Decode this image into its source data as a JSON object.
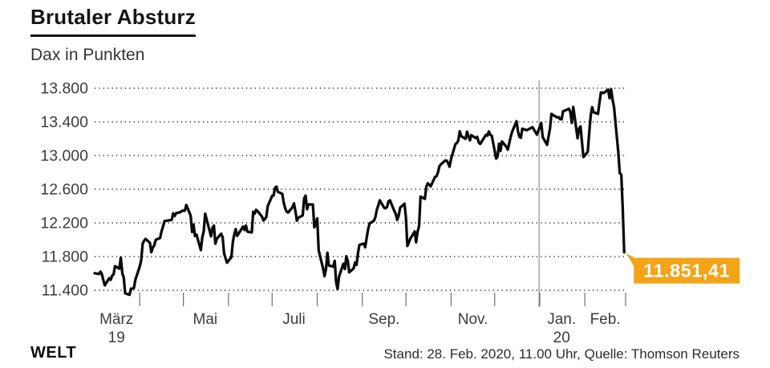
{
  "header": {
    "title": "Brutaler Absturz",
    "subtitle": "Dax in Punkten"
  },
  "footer": {
    "brand": "WELT",
    "source": "Stand: 28. Feb. 2020, 11.00 Uhr, Quelle: Thomson Reuters"
  },
  "colors": {
    "line": "#0b0b0b",
    "grid": "#222222",
    "tick": "#6e6e6e",
    "separator": "#7a7a7a",
    "axis_text": "#3c3c3c",
    "badge": "#F4A418",
    "badge_text": "#ffffff"
  },
  "chart_data": {
    "type": "line",
    "title": "Brutaler Absturz",
    "subtitle": "Dax in Punkten",
    "ylabel": "Dax in Punkten",
    "grid": "dotted-horizontal",
    "ylim": [
      11400,
      13800
    ],
    "yticks": [
      {
        "value": 13800,
        "label": "13.800"
      },
      {
        "value": 13400,
        "label": "13.400"
      },
      {
        "value": 13000,
        "label": "13.000"
      },
      {
        "value": 12600,
        "label": "12.600"
      },
      {
        "value": 12200,
        "label": "12.200"
      },
      {
        "value": 11800,
        "label": "11.800"
      },
      {
        "value": 11400,
        "label": "11.400"
      }
    ],
    "x_domain_days": [
      0,
      365
    ],
    "x_domain_note": "days since 1. März 2019",
    "xticks_days": [
      31,
      61,
      92,
      122,
      153,
      184,
      214,
      245,
      275,
      306,
      337,
      365
    ],
    "xlabels": [
      {
        "day": 15,
        "label": "März",
        "year": "19"
      },
      {
        "day": 76,
        "label": "Mai"
      },
      {
        "day": 137,
        "label": "Juli"
      },
      {
        "day": 199,
        "label": "Sep."
      },
      {
        "day": 260,
        "label": "Nov."
      },
      {
        "day": 321,
        "label": "Jan.",
        "year": "20"
      },
      {
        "day": 351,
        "label": "Feb."
      }
    ],
    "separator_day": 305.5,
    "last_point": {
      "day": 364,
      "value": 11851.41,
      "label": "11.851,41"
    },
    "series": [
      {
        "name": "Dax",
        "points": [
          [
            0,
            11602
          ],
          [
            3,
            11592
          ],
          [
            4,
            11621
          ],
          [
            5,
            11588
          ],
          [
            6,
            11518
          ],
          [
            7,
            11458
          ],
          [
            10,
            11543
          ],
          [
            11,
            11524
          ],
          [
            12,
            11572
          ],
          [
            13,
            11587
          ],
          [
            14,
            11686
          ],
          [
            17,
            11657
          ],
          [
            18,
            11788
          ],
          [
            19,
            11603
          ],
          [
            20,
            11549
          ],
          [
            21,
            11364
          ],
          [
            24,
            11346
          ],
          [
            25,
            11419
          ],
          [
            26,
            11419
          ],
          [
            27,
            11428
          ],
          [
            28,
            11526
          ],
          [
            31,
            11681
          ],
          [
            32,
            11754
          ],
          [
            33,
            11954
          ],
          [
            34,
            11988
          ],
          [
            35,
            12010
          ],
          [
            38,
            11963
          ],
          [
            39,
            11851
          ],
          [
            40,
            11906
          ],
          [
            41,
            11935
          ],
          [
            42,
            11999
          ],
          [
            45,
            12020
          ],
          [
            46,
            12101
          ],
          [
            47,
            12153
          ],
          [
            48,
            12222
          ],
          [
            53,
            12235
          ],
          [
            54,
            12313
          ],
          [
            55,
            12282
          ],
          [
            56,
            12315
          ],
          [
            59,
            12328
          ],
          [
            60,
            12344
          ],
          [
            62,
            12345
          ],
          [
            63,
            12413
          ],
          [
            66,
            12286
          ],
          [
            67,
            12092
          ],
          [
            68,
            12180
          ],
          [
            69,
            12045
          ],
          [
            70,
            12060
          ],
          [
            73,
            11877
          ],
          [
            74,
            12027
          ],
          [
            75,
            12100
          ],
          [
            76,
            12310
          ],
          [
            77,
            12239
          ],
          [
            80,
            12041
          ],
          [
            81,
            12143
          ],
          [
            82,
            12168
          ],
          [
            83,
            11952
          ],
          [
            84,
            12011
          ],
          [
            87,
            12071
          ],
          [
            88,
            12028
          ],
          [
            89,
            11837
          ],
          [
            91,
            11727
          ],
          [
            94,
            11793
          ],
          [
            95,
            11972
          ],
          [
            96,
            12064
          ],
          [
            97,
            12127
          ],
          [
            98,
            12045
          ],
          [
            102,
            12156
          ],
          [
            103,
            12116
          ],
          [
            104,
            12169
          ],
          [
            105,
            12096
          ],
          [
            108,
            12086
          ],
          [
            109,
            12332
          ],
          [
            110,
            12309
          ],
          [
            111,
            12355
          ],
          [
            112,
            12340
          ],
          [
            115,
            12275
          ],
          [
            116,
            12229
          ],
          [
            117,
            12245
          ],
          [
            118,
            12271
          ],
          [
            119,
            12399
          ],
          [
            122,
            12521
          ],
          [
            123,
            12526
          ],
          [
            124,
            12616
          ],
          [
            125,
            12630
          ],
          [
            126,
            12569
          ],
          [
            129,
            12544
          ],
          [
            130,
            12437
          ],
          [
            131,
            12373
          ],
          [
            132,
            12332
          ],
          [
            133,
            12323
          ],
          [
            136,
            12387
          ],
          [
            137,
            12431
          ],
          [
            138,
            12341
          ],
          [
            139,
            12227
          ],
          [
            140,
            12260
          ],
          [
            143,
            12289
          ],
          [
            144,
            12491
          ],
          [
            145,
            12523
          ],
          [
            146,
            12362
          ],
          [
            147,
            12420
          ],
          [
            150,
            12417
          ],
          [
            151,
            12148
          ],
          [
            152,
            12189
          ],
          [
            153,
            12253
          ],
          [
            154,
            11873
          ],
          [
            157,
            11659
          ],
          [
            158,
            11568
          ],
          [
            159,
            11650
          ],
          [
            160,
            11845
          ],
          [
            161,
            11694
          ],
          [
            164,
            11680
          ],
          [
            165,
            11750
          ],
          [
            166,
            11493
          ],
          [
            167,
            11413
          ],
          [
            168,
            11563
          ],
          [
            171,
            11715
          ],
          [
            172,
            11651
          ],
          [
            173,
            11803
          ],
          [
            174,
            11747
          ],
          [
            175,
            11612
          ],
          [
            178,
            11658
          ],
          [
            179,
            11730
          ],
          [
            180,
            11701
          ],
          [
            181,
            11839
          ],
          [
            182,
            11939
          ],
          [
            185,
            11954
          ],
          [
            186,
            11910
          ],
          [
            187,
            12025
          ],
          [
            188,
            12127
          ],
          [
            189,
            12192
          ],
          [
            192,
            12226
          ],
          [
            193,
            12268
          ],
          [
            194,
            12359
          ],
          [
            195,
            12410
          ],
          [
            196,
            12469
          ],
          [
            199,
            12380
          ],
          [
            200,
            12373
          ],
          [
            201,
            12390
          ],
          [
            202,
            12457
          ],
          [
            203,
            12468
          ],
          [
            206,
            12342
          ],
          [
            207,
            12308
          ],
          [
            208,
            12235
          ],
          [
            209,
            12289
          ],
          [
            210,
            12381
          ],
          [
            213,
            12428
          ],
          [
            214,
            12263
          ],
          [
            215,
            11926
          ],
          [
            217,
            12013
          ],
          [
            220,
            12098
          ],
          [
            221,
            11970
          ],
          [
            222,
            12094
          ],
          [
            223,
            12164
          ],
          [
            224,
            12512
          ],
          [
            227,
            12486
          ],
          [
            228,
            12629
          ],
          [
            229,
            12670
          ],
          [
            230,
            12654
          ],
          [
            231,
            12634
          ],
          [
            234,
            12748
          ],
          [
            235,
            12754
          ],
          [
            236,
            12798
          ],
          [
            237,
            12872
          ],
          [
            238,
            12895
          ],
          [
            241,
            12941
          ],
          [
            242,
            12939
          ],
          [
            243,
            12910
          ],
          [
            244,
            12867
          ],
          [
            245,
            12961
          ],
          [
            248,
            13136
          ],
          [
            249,
            13149
          ],
          [
            250,
            13180
          ],
          [
            251,
            13289
          ],
          [
            252,
            13229
          ],
          [
            255,
            13198
          ],
          [
            256,
            13283
          ],
          [
            257,
            13230
          ],
          [
            258,
            13180
          ],
          [
            259,
            13242
          ],
          [
            262,
            13207
          ],
          [
            263,
            13221
          ],
          [
            264,
            13158
          ],
          [
            265,
            13137
          ],
          [
            266,
            13164
          ],
          [
            269,
            13247
          ],
          [
            270,
            13236
          ],
          [
            271,
            13287
          ],
          [
            272,
            13245
          ],
          [
            273,
            13236
          ],
          [
            276,
            12964
          ],
          [
            277,
            12990
          ],
          [
            278,
            13141
          ],
          [
            279,
            13054
          ],
          [
            280,
            13167
          ],
          [
            283,
            13106
          ],
          [
            284,
            13070
          ],
          [
            285,
            13146
          ],
          [
            286,
            13222
          ],
          [
            287,
            13283
          ],
          [
            290,
            13408
          ],
          [
            291,
            13287
          ],
          [
            292,
            13222
          ],
          [
            293,
            13211
          ],
          [
            294,
            13319
          ],
          [
            297,
            13301
          ],
          [
            301,
            13337
          ],
          [
            304,
            13249
          ],
          [
            307,
            13386
          ],
          [
            308,
            13219
          ],
          [
            311,
            13127
          ],
          [
            312,
            13227
          ],
          [
            313,
            13320
          ],
          [
            314,
            13495
          ],
          [
            315,
            13483
          ],
          [
            318,
            13451
          ],
          [
            319,
            13456
          ],
          [
            320,
            13432
          ],
          [
            321,
            13430
          ],
          [
            322,
            13526
          ],
          [
            325,
            13548
          ],
          [
            326,
            13556
          ],
          [
            327,
            13516
          ],
          [
            328,
            13388
          ],
          [
            329,
            13577
          ],
          [
            332,
            13205
          ],
          [
            333,
            13324
          ],
          [
            334,
            13345
          ],
          [
            335,
            13157
          ],
          [
            336,
            12982
          ],
          [
            339,
            13045
          ],
          [
            340,
            13281
          ],
          [
            341,
            13479
          ],
          [
            342,
            13574
          ],
          [
            343,
            13514
          ],
          [
            346,
            13494
          ],
          [
            347,
            13627
          ],
          [
            348,
            13750
          ],
          [
            349,
            13745
          ],
          [
            350,
            13744
          ],
          [
            353,
            13783
          ],
          [
            354,
            13681
          ],
          [
            355,
            13789
          ],
          [
            356,
            13664
          ],
          [
            357,
            13579
          ],
          [
            360,
            13035
          ],
          [
            361,
            12790
          ],
          [
            362,
            12774
          ],
          [
            363,
            12367
          ],
          [
            364,
            11851.41
          ]
        ]
      }
    ]
  }
}
